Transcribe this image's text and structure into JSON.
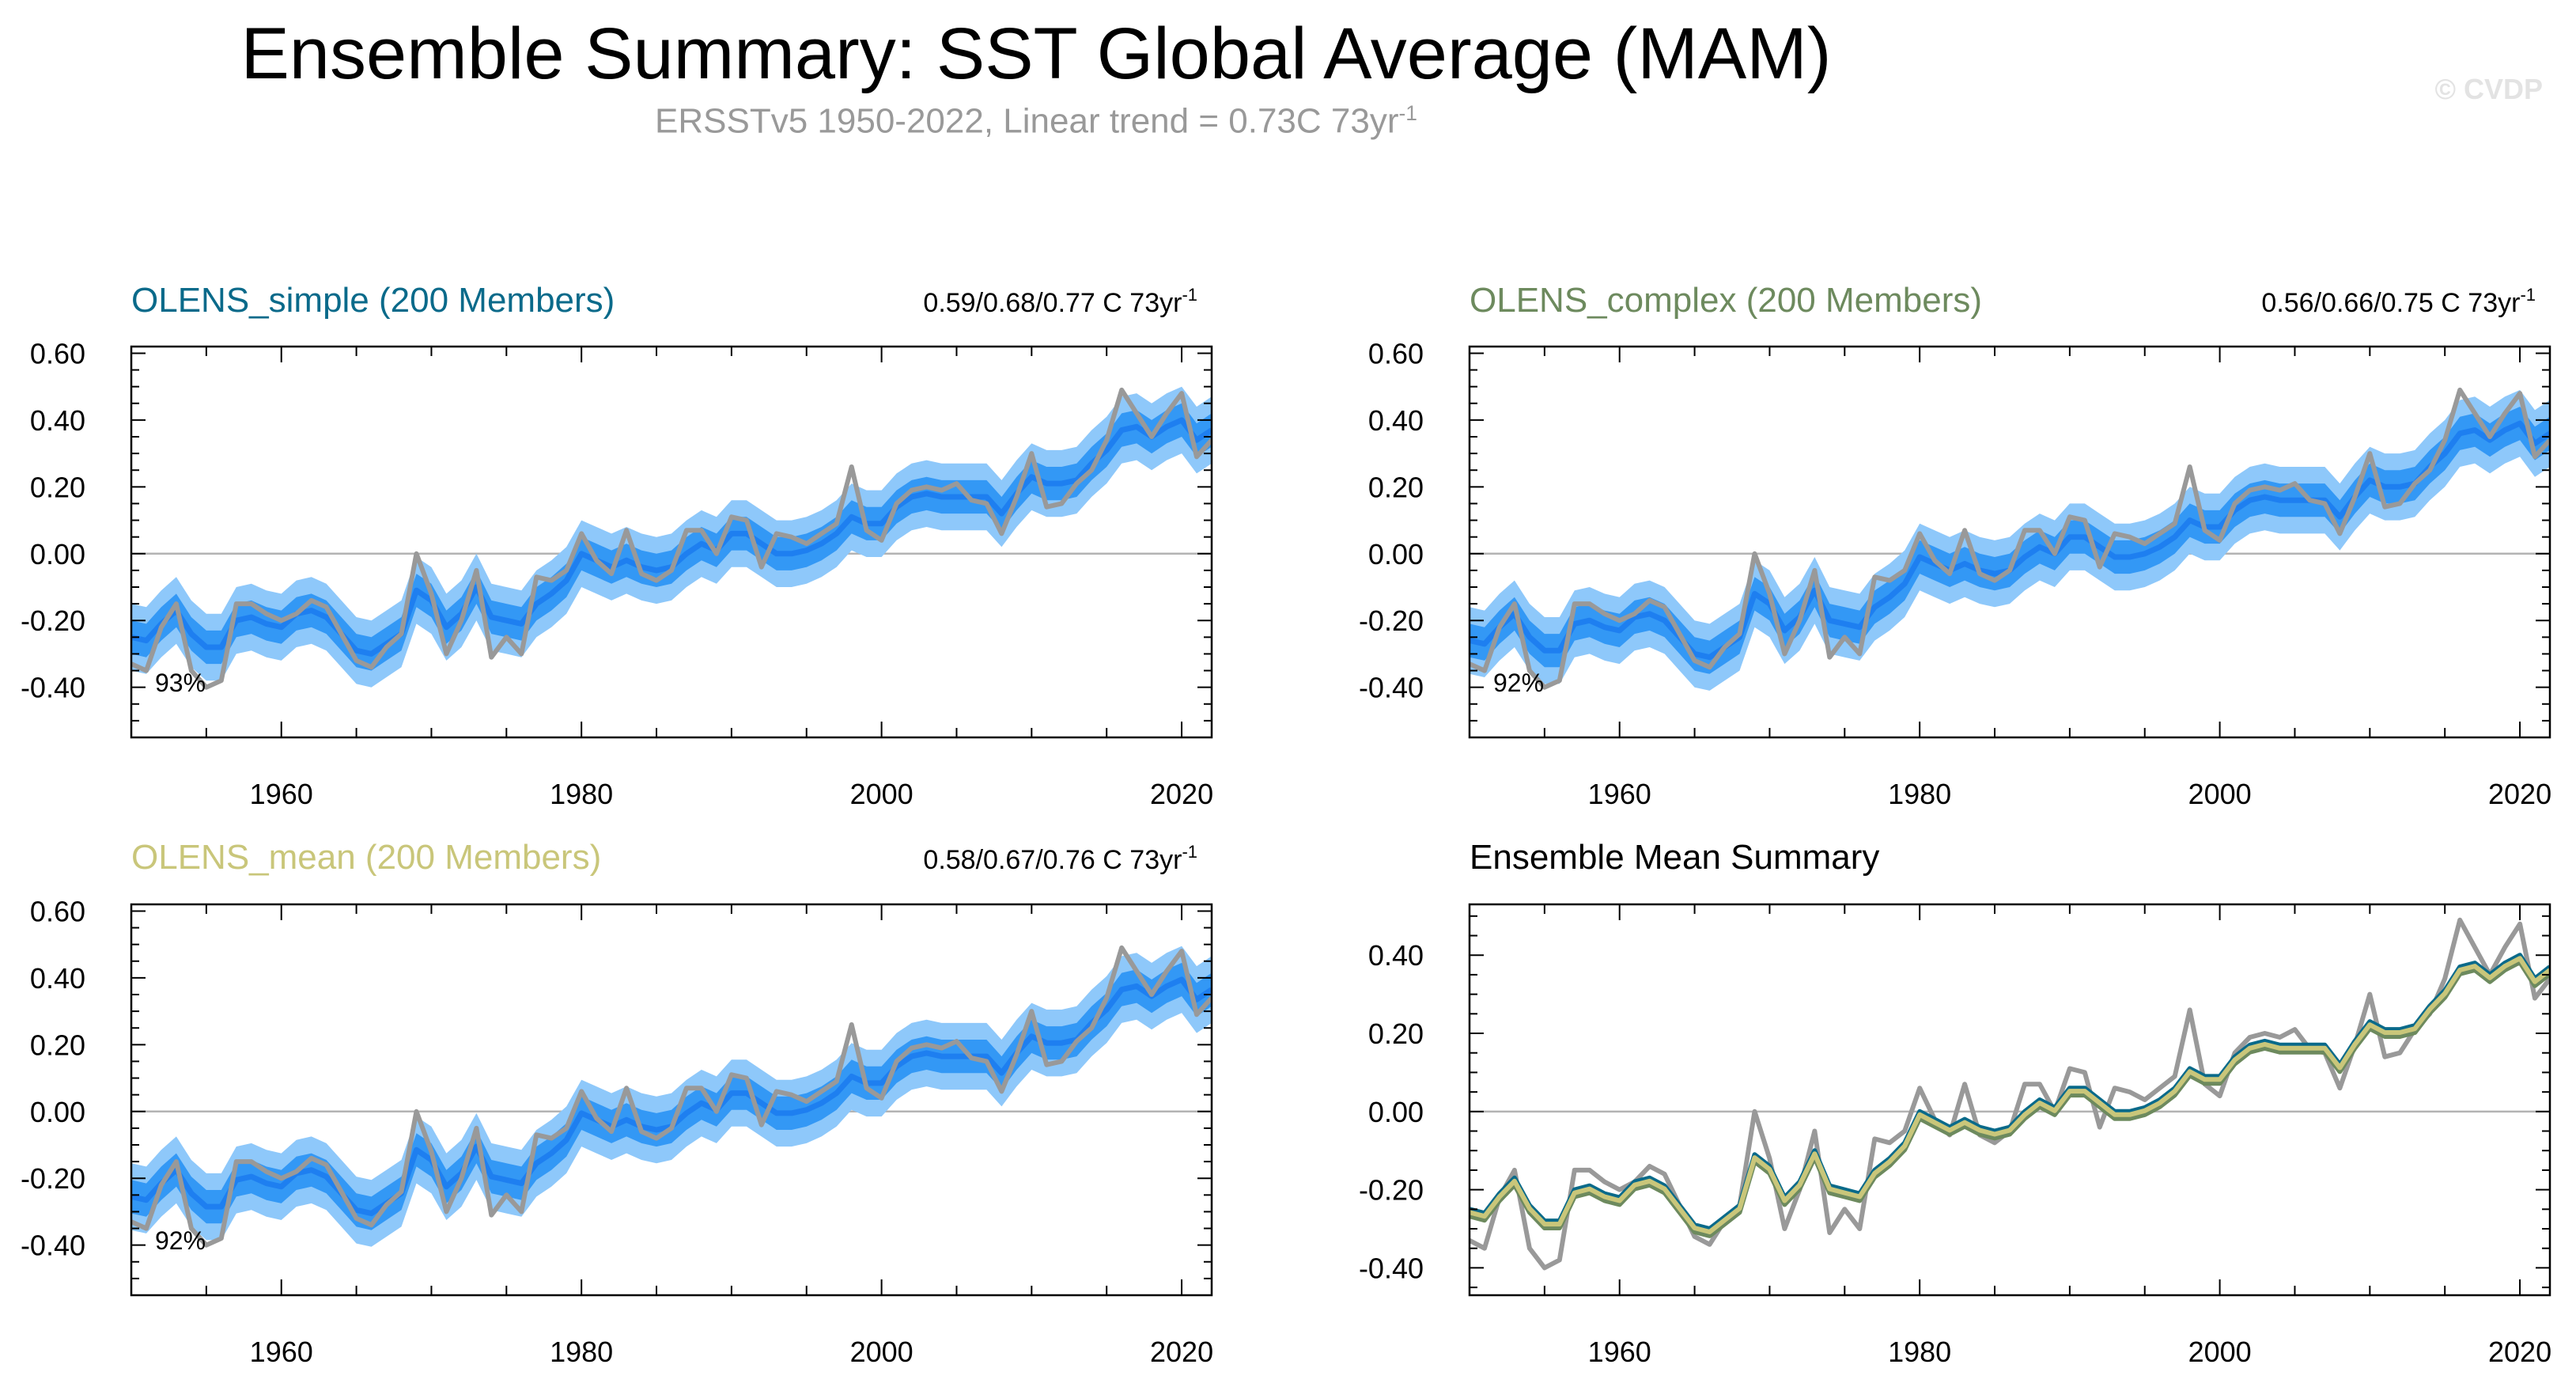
{
  "title": "Ensemble Summary: SST Global Average (MAM)",
  "subtitle": {
    "text": "ERSSTv5 1950-2022, Linear trend = 0.73C 73yr",
    "unit_sup": "-1"
  },
  "copyright": "© CVDP",
  "colors": {
    "observations": "#999999",
    "ensemble_mean": "#1e7ff0",
    "band_inner": "#3398f5",
    "band_outer": "#8ec8fa",
    "olens_simple": "#0a6a8a",
    "olens_complex": "#6d8a5e",
    "olens_mean": "#c9c67a"
  },
  "chart_data": [
    {
      "type": "area",
      "title": "OLENS_simple (200 Members)",
      "title_color": "#0a6a8a",
      "trend_text": "0.59/0.68/0.77 C 73yr",
      "trend_sup": "-1",
      "percent_text": "93%",
      "xlim": [
        1950,
        2022
      ],
      "ylim": [
        -0.55,
        0.62
      ],
      "yticks": [
        -0.4,
        -0.2,
        0.0,
        0.2,
        0.4,
        0.6
      ],
      "ytick_labels": [
        "-0.40",
        "-0.20",
        "0.00",
        "0.20",
        "0.40",
        "0.60"
      ],
      "xticks": [
        1960,
        1980,
        2000,
        2020
      ],
      "xtick_labels": [
        "1960",
        "1980",
        "2000",
        "2020"
      ],
      "grid": false,
      "offset": 0.0
    },
    {
      "type": "area",
      "title": "OLENS_complex (200 Members)",
      "title_color": "#6d8a5e",
      "trend_text": "0.56/0.66/0.75 C 73yr",
      "trend_sup": "-1",
      "percent_text": "92%",
      "xlim": [
        1950,
        2022
      ],
      "ylim": [
        -0.55,
        0.62
      ],
      "yticks": [
        -0.4,
        -0.2,
        0.0,
        0.2,
        0.4,
        0.6
      ],
      "ytick_labels": [
        "-0.40",
        "-0.20",
        "0.00",
        "0.20",
        "0.40",
        "0.60"
      ],
      "xticks": [
        1960,
        1980,
        2000,
        2020
      ],
      "xtick_labels": [
        "1960",
        "1980",
        "2000",
        "2020"
      ],
      "grid": false,
      "offset": -0.01
    },
    {
      "type": "area",
      "title": "OLENS_mean (200 Members)",
      "title_color": "#c9c67a",
      "trend_text": "0.58/0.67/0.76 C 73yr",
      "trend_sup": "-1",
      "percent_text": "92%",
      "xlim": [
        1950,
        2022
      ],
      "ylim": [
        -0.55,
        0.62
      ],
      "yticks": [
        -0.4,
        -0.2,
        0.0,
        0.2,
        0.4,
        0.6
      ],
      "ytick_labels": [
        "-0.40",
        "-0.20",
        "0.00",
        "0.20",
        "0.40",
        "0.60"
      ],
      "xticks": [
        1960,
        1980,
        2000,
        2020
      ],
      "xtick_labels": [
        "1960",
        "1980",
        "2000",
        "2020"
      ],
      "grid": false,
      "offset": -0.005
    },
    {
      "type": "line",
      "title": "Ensemble Mean Summary",
      "title_color": "#000000",
      "xlim": [
        1950,
        2022
      ],
      "ylim": [
        -0.47,
        0.53
      ],
      "yticks": [
        -0.4,
        -0.2,
        0.0,
        0.2,
        0.4
      ],
      "ytick_labels": [
        "-0.40",
        "-0.20",
        "0.00",
        "0.20",
        "0.40"
      ],
      "xticks": [
        1960,
        1980,
        2000,
        2020
      ],
      "xtick_labels": [
        "1960",
        "1980",
        "2000",
        "2020"
      ],
      "grid": false
    }
  ],
  "series_data": {
    "years": [
      1950,
      1951,
      1952,
      1953,
      1954,
      1955,
      1956,
      1957,
      1958,
      1959,
      1960,
      1961,
      1962,
      1963,
      1964,
      1965,
      1966,
      1967,
      1968,
      1969,
      1970,
      1971,
      1972,
      1973,
      1974,
      1975,
      1976,
      1977,
      1978,
      1979,
      1980,
      1981,
      1982,
      1983,
      1984,
      1985,
      1986,
      1987,
      1988,
      1989,
      1990,
      1991,
      1992,
      1993,
      1994,
      1995,
      1996,
      1997,
      1998,
      1999,
      2000,
      2001,
      2002,
      2003,
      2004,
      2005,
      2006,
      2007,
      2008,
      2009,
      2010,
      2011,
      2012,
      2013,
      2014,
      2015,
      2016,
      2017,
      2018,
      2019,
      2020,
      2021,
      2022
    ],
    "observed": [
      -0.33,
      -0.35,
      -0.22,
      -0.15,
      -0.35,
      -0.4,
      -0.38,
      -0.15,
      -0.15,
      -0.18,
      -0.2,
      -0.18,
      -0.14,
      -0.16,
      -0.24,
      -0.32,
      -0.34,
      -0.28,
      -0.24,
      0.0,
      -0.12,
      -0.3,
      -0.2,
      -0.05,
      -0.31,
      -0.25,
      -0.3,
      -0.07,
      -0.08,
      -0.05,
      0.06,
      -0.02,
      -0.06,
      0.07,
      -0.06,
      -0.08,
      -0.05,
      0.07,
      0.07,
      0.0,
      0.11,
      0.1,
      -0.04,
      0.06,
      0.05,
      0.03,
      0.06,
      0.09,
      0.26,
      0.07,
      0.04,
      0.15,
      0.19,
      0.2,
      0.19,
      0.21,
      0.16,
      0.15,
      0.06,
      0.17,
      0.3,
      0.14,
      0.15,
      0.21,
      0.25,
      0.34,
      0.49,
      0.42,
      0.35,
      0.42,
      0.48,
      0.29,
      0.34
    ],
    "mean_simple": [
      -0.25,
      -0.26,
      -0.21,
      -0.17,
      -0.24,
      -0.28,
      -0.28,
      -0.2,
      -0.19,
      -0.21,
      -0.22,
      -0.18,
      -0.17,
      -0.19,
      -0.24,
      -0.29,
      -0.3,
      -0.27,
      -0.24,
      -0.11,
      -0.14,
      -0.22,
      -0.18,
      -0.1,
      -0.19,
      -0.2,
      -0.21,
      -0.15,
      -0.12,
      -0.08,
      0.0,
      -0.02,
      -0.04,
      -0.02,
      -0.04,
      -0.05,
      -0.04,
      0.0,
      0.03,
      0.01,
      0.06,
      0.06,
      0.03,
      0.0,
      0.0,
      0.01,
      0.03,
      0.06,
      0.11,
      0.09,
      0.09,
      0.14,
      0.17,
      0.18,
      0.17,
      0.17,
      0.17,
      0.17,
      0.12,
      0.18,
      0.23,
      0.21,
      0.21,
      0.22,
      0.27,
      0.31,
      0.37,
      0.38,
      0.35,
      0.38,
      0.4,
      0.34,
      0.37
    ]
  },
  "overlay_offsets": {
    "olens_simple": 0.0,
    "olens_complex": -0.018,
    "olens_mean": -0.008
  }
}
